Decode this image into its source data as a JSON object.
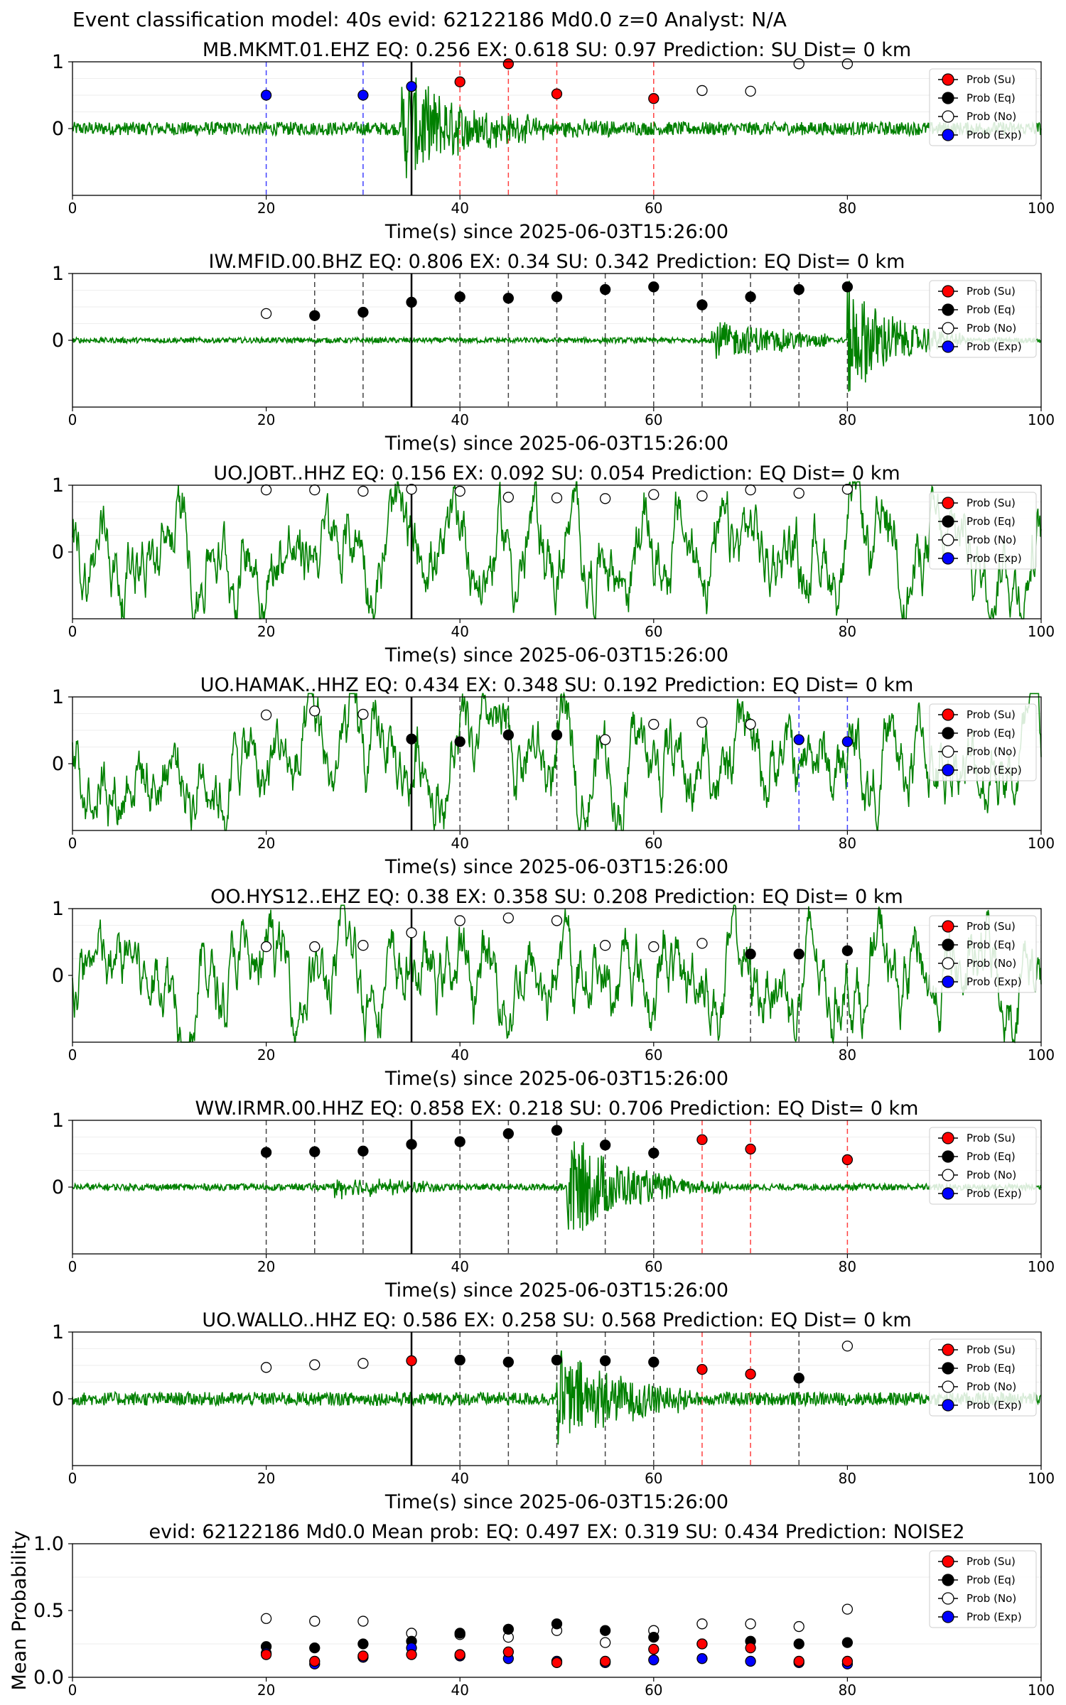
{
  "figure": {
    "suptitle": "Event classification model: 40s evid: 62122186 Md0.0 z=0 Analyst: N/A",
    "xlabel": "Time(s) since 2025-06-03T15:26:00",
    "legend": [
      "Prob (Su)",
      "Prob (Eq)",
      "Prob (No)",
      "Prob (Exp)"
    ],
    "colors": {
      "su": "#ff0000",
      "eq": "#000000",
      "no": "#ffffff",
      "exp": "#0000ff",
      "trace": "#008000",
      "pick": "#000000"
    }
  },
  "chart_data": [
    {
      "type": "scatter",
      "title": "MB.MKMT.01.EHZ   EQ: 0.256  EX: 0.618  SU: 0.97   Prediction: SU    Dist= 0 km",
      "xlabel": "Time(s) since 2025-06-03T15:26:00",
      "xlim": [
        0,
        100
      ],
      "ylim": [
        -1,
        1
      ],
      "xticks": [
        "0",
        "20",
        "40",
        "60",
        "80",
        "100"
      ],
      "yticks": [
        "1",
        "0"
      ],
      "pick_time": 35,
      "trace": {
        "noise": 0.1,
        "bursts": [
          {
            "start": 34,
            "end": 58,
            "amp": 0.85,
            "decay": 7
          }
        ]
      },
      "points": [
        {
          "x": 20,
          "y": 0.5,
          "class": "exp"
        },
        {
          "x": 30,
          "y": 0.5,
          "class": "exp"
        },
        {
          "x": 35,
          "y": 0.63,
          "class": "exp"
        },
        {
          "x": 40,
          "y": 0.7,
          "class": "su"
        },
        {
          "x": 45,
          "y": 0.97,
          "class": "su"
        },
        {
          "x": 50,
          "y": 0.52,
          "class": "su"
        },
        {
          "x": 60,
          "y": 0.45,
          "class": "su"
        },
        {
          "x": 65,
          "y": 0.57,
          "class": "no"
        },
        {
          "x": 70,
          "y": 0.56,
          "class": "no"
        },
        {
          "x": 75,
          "y": 0.97,
          "class": "no"
        },
        {
          "x": 80,
          "y": 0.97,
          "class": "no"
        }
      ]
    },
    {
      "type": "scatter",
      "title": "IW.MFID.00.BHZ   EQ: 0.806  EX: 0.34  SU: 0.342   Prediction: EQ    Dist= 0 km",
      "xlabel": "Time(s) since 2025-06-03T15:26:00",
      "xlim": [
        0,
        100
      ],
      "ylim": [
        -1,
        1
      ],
      "xticks": [
        "0",
        "20",
        "40",
        "60",
        "80",
        "100"
      ],
      "yticks": [
        "1",
        "0"
      ],
      "pick_time": 35,
      "trace": {
        "noise": 0.04,
        "bursts": [
          {
            "start": 66,
            "end": 78,
            "amp": 0.3,
            "decay": 10
          },
          {
            "start": 80,
            "end": 92,
            "amp": 0.9,
            "decay": 5
          }
        ]
      },
      "points": [
        {
          "x": 20,
          "y": 0.4,
          "class": "no"
        },
        {
          "x": 25,
          "y": 0.37,
          "class": "eq"
        },
        {
          "x": 30,
          "y": 0.42,
          "class": "eq"
        },
        {
          "x": 35,
          "y": 0.57,
          "class": "eq"
        },
        {
          "x": 40,
          "y": 0.65,
          "class": "eq"
        },
        {
          "x": 45,
          "y": 0.63,
          "class": "eq"
        },
        {
          "x": 50,
          "y": 0.65,
          "class": "eq"
        },
        {
          "x": 55,
          "y": 0.76,
          "class": "eq"
        },
        {
          "x": 60,
          "y": 0.8,
          "class": "eq"
        },
        {
          "x": 65,
          "y": 0.53,
          "class": "eq"
        },
        {
          "x": 70,
          "y": 0.65,
          "class": "eq"
        },
        {
          "x": 75,
          "y": 0.76,
          "class": "eq"
        },
        {
          "x": 80,
          "y": 0.8,
          "class": "eq"
        }
      ]
    },
    {
      "type": "scatter",
      "title": "UO.JOBT..HHZ   EQ: 0.156  EX: 0.092  SU: 0.054   Prediction: EQ    Dist= 0 km",
      "xlabel": "Time(s) since 2025-06-03T15:26:00",
      "xlim": [
        0,
        100
      ],
      "ylim": [
        -1,
        1
      ],
      "xticks": [
        "0",
        "20",
        "40",
        "60",
        "80",
        "100"
      ],
      "yticks": [
        "1",
        "0"
      ],
      "pick_time": 35,
      "trace": {
        "noise": 0.45,
        "lowfreq": true,
        "bursts": []
      },
      "points": [
        {
          "x": 20,
          "y": 0.93,
          "class": "no"
        },
        {
          "x": 25,
          "y": 0.93,
          "class": "no"
        },
        {
          "x": 30,
          "y": 0.91,
          "class": "no"
        },
        {
          "x": 35,
          "y": 0.94,
          "class": "no"
        },
        {
          "x": 40,
          "y": 0.91,
          "class": "no"
        },
        {
          "x": 45,
          "y": 0.82,
          "class": "no"
        },
        {
          "x": 50,
          "y": 0.81,
          "class": "no"
        },
        {
          "x": 55,
          "y": 0.8,
          "class": "no"
        },
        {
          "x": 60,
          "y": 0.86,
          "class": "no"
        },
        {
          "x": 65,
          "y": 0.84,
          "class": "no"
        },
        {
          "x": 70,
          "y": 0.93,
          "class": "no"
        },
        {
          "x": 75,
          "y": 0.88,
          "class": "no"
        },
        {
          "x": 80,
          "y": 0.94,
          "class": "no"
        }
      ]
    },
    {
      "type": "scatter",
      "title": "UO.HAMAK..HHZ   EQ: 0.434  EX: 0.348  SU: 0.192   Prediction: EQ    Dist= 0 km",
      "xlabel": "Time(s) since 2025-06-03T15:26:00",
      "xlim": [
        0,
        100
      ],
      "ylim": [
        -1,
        1
      ],
      "xticks": [
        "0",
        "20",
        "40",
        "60",
        "80",
        "100"
      ],
      "yticks": [
        "1",
        "0"
      ],
      "pick_time": 35,
      "trace": {
        "noise": 0.45,
        "lowfreq": true,
        "bursts": []
      },
      "points": [
        {
          "x": 20,
          "y": 0.73,
          "class": "no"
        },
        {
          "x": 25,
          "y": 0.79,
          "class": "no"
        },
        {
          "x": 30,
          "y": 0.74,
          "class": "no"
        },
        {
          "x": 35,
          "y": 0.37,
          "class": "eq"
        },
        {
          "x": 40,
          "y": 0.33,
          "class": "eq"
        },
        {
          "x": 45,
          "y": 0.43,
          "class": "eq"
        },
        {
          "x": 50,
          "y": 0.43,
          "class": "eq"
        },
        {
          "x": 55,
          "y": 0.36,
          "class": "no"
        },
        {
          "x": 60,
          "y": 0.59,
          "class": "no"
        },
        {
          "x": 65,
          "y": 0.62,
          "class": "no"
        },
        {
          "x": 70,
          "y": 0.59,
          "class": "no"
        },
        {
          "x": 75,
          "y": 0.36,
          "class": "exp"
        },
        {
          "x": 80,
          "y": 0.33,
          "class": "exp"
        }
      ]
    },
    {
      "type": "scatter",
      "title": "OO.HYS12..EHZ   EQ: 0.38  EX: 0.358  SU: 0.208   Prediction: EQ    Dist= 0 km",
      "xlabel": "Time(s) since 2025-06-03T15:26:00",
      "xlim": [
        0,
        100
      ],
      "ylim": [
        -1,
        1
      ],
      "xticks": [
        "0",
        "20",
        "40",
        "60",
        "80",
        "100"
      ],
      "yticks": [
        "1",
        "0"
      ],
      "pick_time": 35,
      "trace": {
        "noise": 0.45,
        "lowfreq": true,
        "bursts": []
      },
      "points": [
        {
          "x": 20,
          "y": 0.43,
          "class": "no"
        },
        {
          "x": 25,
          "y": 0.43,
          "class": "no"
        },
        {
          "x": 30,
          "y": 0.45,
          "class": "no"
        },
        {
          "x": 35,
          "y": 0.64,
          "class": "no"
        },
        {
          "x": 40,
          "y": 0.82,
          "class": "no"
        },
        {
          "x": 45,
          "y": 0.86,
          "class": "no"
        },
        {
          "x": 50,
          "y": 0.82,
          "class": "no"
        },
        {
          "x": 55,
          "y": 0.45,
          "class": "no"
        },
        {
          "x": 60,
          "y": 0.43,
          "class": "no"
        },
        {
          "x": 65,
          "y": 0.48,
          "class": "no"
        },
        {
          "x": 70,
          "y": 0.32,
          "class": "eq"
        },
        {
          "x": 75,
          "y": 0.32,
          "class": "eq"
        },
        {
          "x": 80,
          "y": 0.37,
          "class": "eq"
        }
      ]
    },
    {
      "type": "scatter",
      "title": "WW.IRMR.00.HHZ   EQ: 0.858  EX: 0.218  SU: 0.706   Prediction: EQ    Dist= 0 km",
      "xlabel": "Time(s) since 2025-06-03T15:26:00",
      "xlim": [
        0,
        100
      ],
      "ylim": [
        -1,
        1
      ],
      "xticks": [
        "0",
        "20",
        "40",
        "60",
        "80",
        "100"
      ],
      "yticks": [
        "1",
        "0"
      ],
      "pick_time": 35,
      "trace": {
        "noise": 0.05,
        "bursts": [
          {
            "start": 27,
            "end": 38,
            "amp": 0.15,
            "decay": 10
          },
          {
            "start": 51,
            "end": 68,
            "amp": 0.85,
            "decay": 6
          }
        ]
      },
      "points": [
        {
          "x": 20,
          "y": 0.52,
          "class": "eq"
        },
        {
          "x": 25,
          "y": 0.53,
          "class": "eq"
        },
        {
          "x": 30,
          "y": 0.54,
          "class": "eq"
        },
        {
          "x": 35,
          "y": 0.64,
          "class": "eq"
        },
        {
          "x": 40,
          "y": 0.68,
          "class": "eq"
        },
        {
          "x": 45,
          "y": 0.8,
          "class": "eq"
        },
        {
          "x": 50,
          "y": 0.85,
          "class": "eq"
        },
        {
          "x": 55,
          "y": 0.63,
          "class": "eq"
        },
        {
          "x": 60,
          "y": 0.51,
          "class": "eq"
        },
        {
          "x": 65,
          "y": 0.71,
          "class": "su"
        },
        {
          "x": 70,
          "y": 0.57,
          "class": "su"
        },
        {
          "x": 80,
          "y": 0.41,
          "class": "su"
        }
      ]
    },
    {
      "type": "scatter",
      "title": "UO.WALLO..HHZ   EQ: 0.586  EX: 0.258  SU: 0.568   Prediction: EQ    Dist= 0 km",
      "xlabel": "Time(s) since 2025-06-03T15:26:00",
      "xlim": [
        0,
        100
      ],
      "ylim": [
        -1,
        1
      ],
      "xticks": [
        "0",
        "20",
        "40",
        "60",
        "80",
        "100"
      ],
      "yticks": [
        "1",
        "0"
      ],
      "pick_time": 35,
      "trace": {
        "noise": 0.1,
        "bursts": [
          {
            "start": 50,
            "end": 64,
            "amp": 0.7,
            "decay": 8
          }
        ]
      },
      "points": [
        {
          "x": 20,
          "y": 0.47,
          "class": "no"
        },
        {
          "x": 25,
          "y": 0.51,
          "class": "no"
        },
        {
          "x": 30,
          "y": 0.53,
          "class": "no"
        },
        {
          "x": 35,
          "y": 0.57,
          "class": "su"
        },
        {
          "x": 40,
          "y": 0.58,
          "class": "eq"
        },
        {
          "x": 45,
          "y": 0.55,
          "class": "eq"
        },
        {
          "x": 50,
          "y": 0.58,
          "class": "eq"
        },
        {
          "x": 55,
          "y": 0.57,
          "class": "eq"
        },
        {
          "x": 60,
          "y": 0.55,
          "class": "eq"
        },
        {
          "x": 65,
          "y": 0.44,
          "class": "su"
        },
        {
          "x": 70,
          "y": 0.37,
          "class": "su"
        },
        {
          "x": 75,
          "y": 0.31,
          "class": "eq"
        },
        {
          "x": 80,
          "y": 0.79,
          "class": "no"
        }
      ]
    },
    {
      "type": "scatter",
      "title": "evid: 62122186  Md0.0   Mean prob:   EQ: 0.497  EX: 0.319  SU: 0.434   Prediction: NOISE2",
      "ylabel": "Mean Probability",
      "xlim": [
        0,
        100
      ],
      "ylim": [
        0,
        1
      ],
      "xticks": [
        "0",
        "20",
        "40",
        "60",
        "80",
        "100"
      ],
      "yticks": [
        "1.0",
        "0.5",
        "0.0"
      ],
      "series": [
        {
          "name": "Prob (No)",
          "class": "no",
          "x": [
            20,
            25,
            30,
            35,
            40,
            45,
            50,
            55,
            60,
            65,
            70,
            75,
            80
          ],
          "y": [
            0.44,
            0.42,
            0.42,
            0.33,
            0.32,
            0.3,
            0.35,
            0.26,
            0.35,
            0.4,
            0.4,
            0.38,
            0.51
          ]
        },
        {
          "name": "Prob (Eq)",
          "class": "eq",
          "x": [
            20,
            25,
            30,
            35,
            40,
            45,
            50,
            55,
            60,
            65,
            70,
            75,
            80
          ],
          "y": [
            0.23,
            0.22,
            0.25,
            0.27,
            0.33,
            0.36,
            0.4,
            0.35,
            0.3,
            0.25,
            0.27,
            0.25,
            0.26
          ]
        },
        {
          "name": "Prob (Exp)",
          "class": "exp",
          "x": [
            20,
            25,
            30,
            35,
            40,
            45,
            50,
            55,
            60,
            65,
            70,
            75,
            80
          ],
          "y": [
            0.18,
            0.1,
            0.15,
            0.22,
            0.16,
            0.14,
            0.12,
            0.11,
            0.13,
            0.14,
            0.12,
            0.11,
            0.1
          ]
        },
        {
          "name": "Prob (Su)",
          "class": "su",
          "x": [
            20,
            25,
            30,
            35,
            40,
            45,
            50,
            55,
            60,
            65,
            70,
            75,
            80
          ],
          "y": [
            0.17,
            0.12,
            0.16,
            0.17,
            0.17,
            0.19,
            0.11,
            0.12,
            0.21,
            0.25,
            0.22,
            0.12,
            0.12
          ]
        }
      ]
    }
  ]
}
